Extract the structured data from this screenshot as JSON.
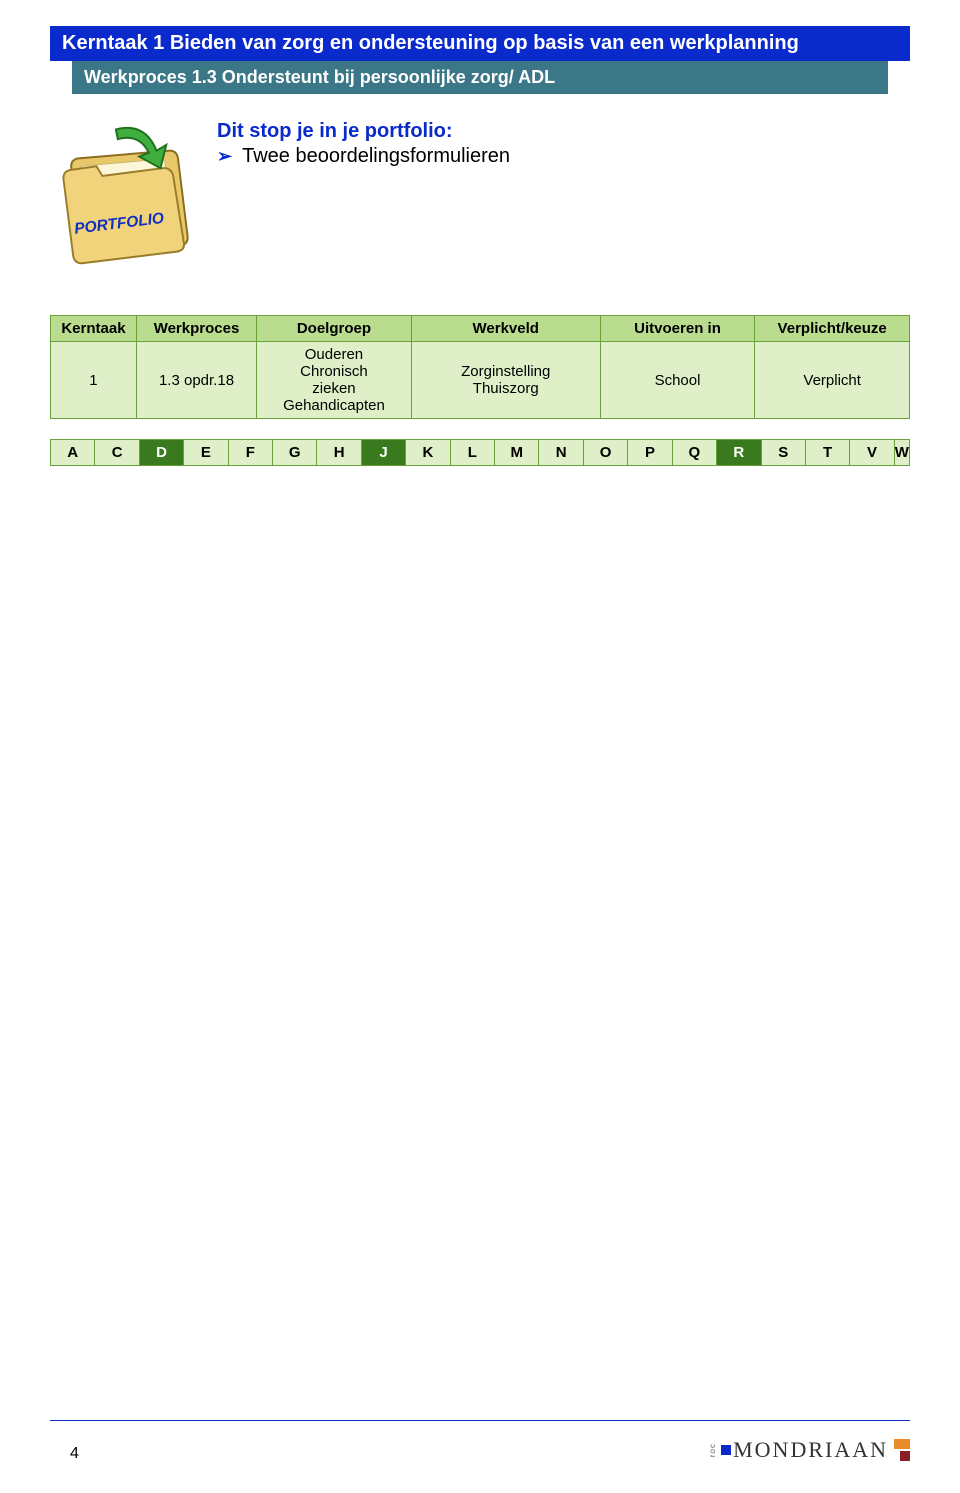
{
  "header": {
    "title": "Kerntaak 1  Bieden van zorg en ondersteuning op basis van een werkplanning",
    "subtitle": "Werkproces 1.3 Ondersteunt bij persoonlijke zorg/ ADL"
  },
  "portfolio": {
    "title": "Dit stop je in je portfolio:",
    "bullet": "Twee beoordelingsformulieren",
    "folder_label": "PORTFOLIO"
  },
  "main_table": {
    "headers": [
      "Kerntaak",
      "Werkproces",
      "Doelgroep",
      "Werkveld",
      "Uitvoeren in",
      "Verplicht/keuze"
    ],
    "row": {
      "kerntaak": "1",
      "werkproces": "1.3 opdr.18",
      "doelgroep_lines": [
        "Ouderen",
        "Chronisch",
        "zieken",
        "Gehandicapten"
      ],
      "werkveld_lines": [
        "Zorginstelling",
        "Thuiszorg"
      ],
      "uitvoeren": "School",
      "verplicht": "Verplicht"
    },
    "header_bg": "#b9dc8e",
    "cell_bg": "#dff0c8",
    "border_color": "#69a03a"
  },
  "letter_strip": {
    "cells": [
      {
        "label": "A",
        "dark": false
      },
      {
        "label": "C",
        "dark": false
      },
      {
        "label": "D",
        "dark": true
      },
      {
        "label": "E",
        "dark": false
      },
      {
        "label": "F",
        "dark": false
      },
      {
        "label": "G",
        "dark": false
      },
      {
        "label": "H",
        "dark": false
      },
      {
        "label": "J",
        "dark": true
      },
      {
        "label": "K",
        "dark": false
      },
      {
        "label": "L",
        "dark": false
      },
      {
        "label": "M",
        "dark": false
      },
      {
        "label": "N",
        "dark": false
      },
      {
        "label": "O",
        "dark": false
      },
      {
        "label": "P",
        "dark": false
      },
      {
        "label": "Q",
        "dark": false
      },
      {
        "label": "R",
        "dark": true
      },
      {
        "label": "S",
        "dark": false
      },
      {
        "label": "T",
        "dark": false
      },
      {
        "label": "V",
        "dark": false
      },
      {
        "label": "W",
        "dark": false
      }
    ],
    "light_bg": "#dff0c8",
    "dark_bg": "#3a7a1e"
  },
  "footer": {
    "page_number": "4",
    "logo_text": "MONDRIAAN",
    "roc": "roc"
  },
  "colors": {
    "primary_blue": "#0a2acc",
    "teal": "#3b7787",
    "white": "#ffffff",
    "orange": "#e98b2a",
    "darkred": "#8a1f2a"
  }
}
